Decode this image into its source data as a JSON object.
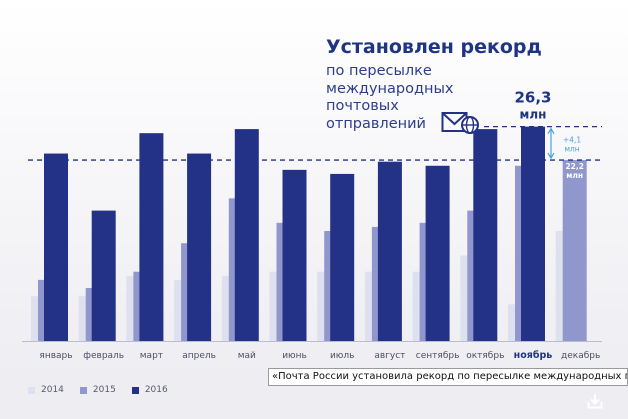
{
  "chart_data": {
    "type": "bar",
    "title": "Установлен рекорд",
    "subtitle_lines": [
      "по пересылке",
      "международных",
      "почтовых",
      "отправлений"
    ],
    "categories": [
      "январь",
      "февраль",
      "март",
      "апрель",
      "май",
      "июнь",
      "июль",
      "август",
      "сентябрь",
      "октябрь",
      "ноябрь",
      "декабрь"
    ],
    "highlight_category": "ноябрь",
    "series": [
      {
        "name": "2014",
        "color": "#dde1ef",
        "values": [
          5.5,
          5.5,
          8.0,
          7.5,
          8.0,
          8.5,
          8.5,
          8.5,
          8.5,
          10.5,
          4.5,
          13.5
        ]
      },
      {
        "name": "2015",
        "color": "#8f97cc",
        "values": [
          7.5,
          6.5,
          8.5,
          12.0,
          17.5,
          14.5,
          13.5,
          14.0,
          14.5,
          16.0,
          21.5,
          22.2
        ]
      },
      {
        "name": "2016",
        "color": "#233286",
        "values": [
          23.0,
          16.0,
          25.5,
          23.0,
          26.0,
          21.0,
          20.5,
          22.0,
          21.5,
          26.0,
          26.3,
          null
        ]
      }
    ],
    "ylim": [
      0,
      30
    ],
    "legend_position": "bottom-left",
    "reference_lines": [
      {
        "value": 26.3,
        "label": [
          "26,3",
          "млн"
        ]
      },
      {
        "value": 22.2,
        "label": [
          "22,2",
          "млн"
        ]
      }
    ],
    "difference_annotation": {
      "label": [
        "+4,1",
        "млн"
      ]
    },
    "colors": {
      "accent": "#233286",
      "difference": "#4aa3d6",
      "axis": "#b8bdd0"
    }
  },
  "caption": "«Почта России установила рекорд по пересылке международных почт",
  "icons": {
    "mail": "envelope-globe-icon",
    "download": "download-icon"
  }
}
